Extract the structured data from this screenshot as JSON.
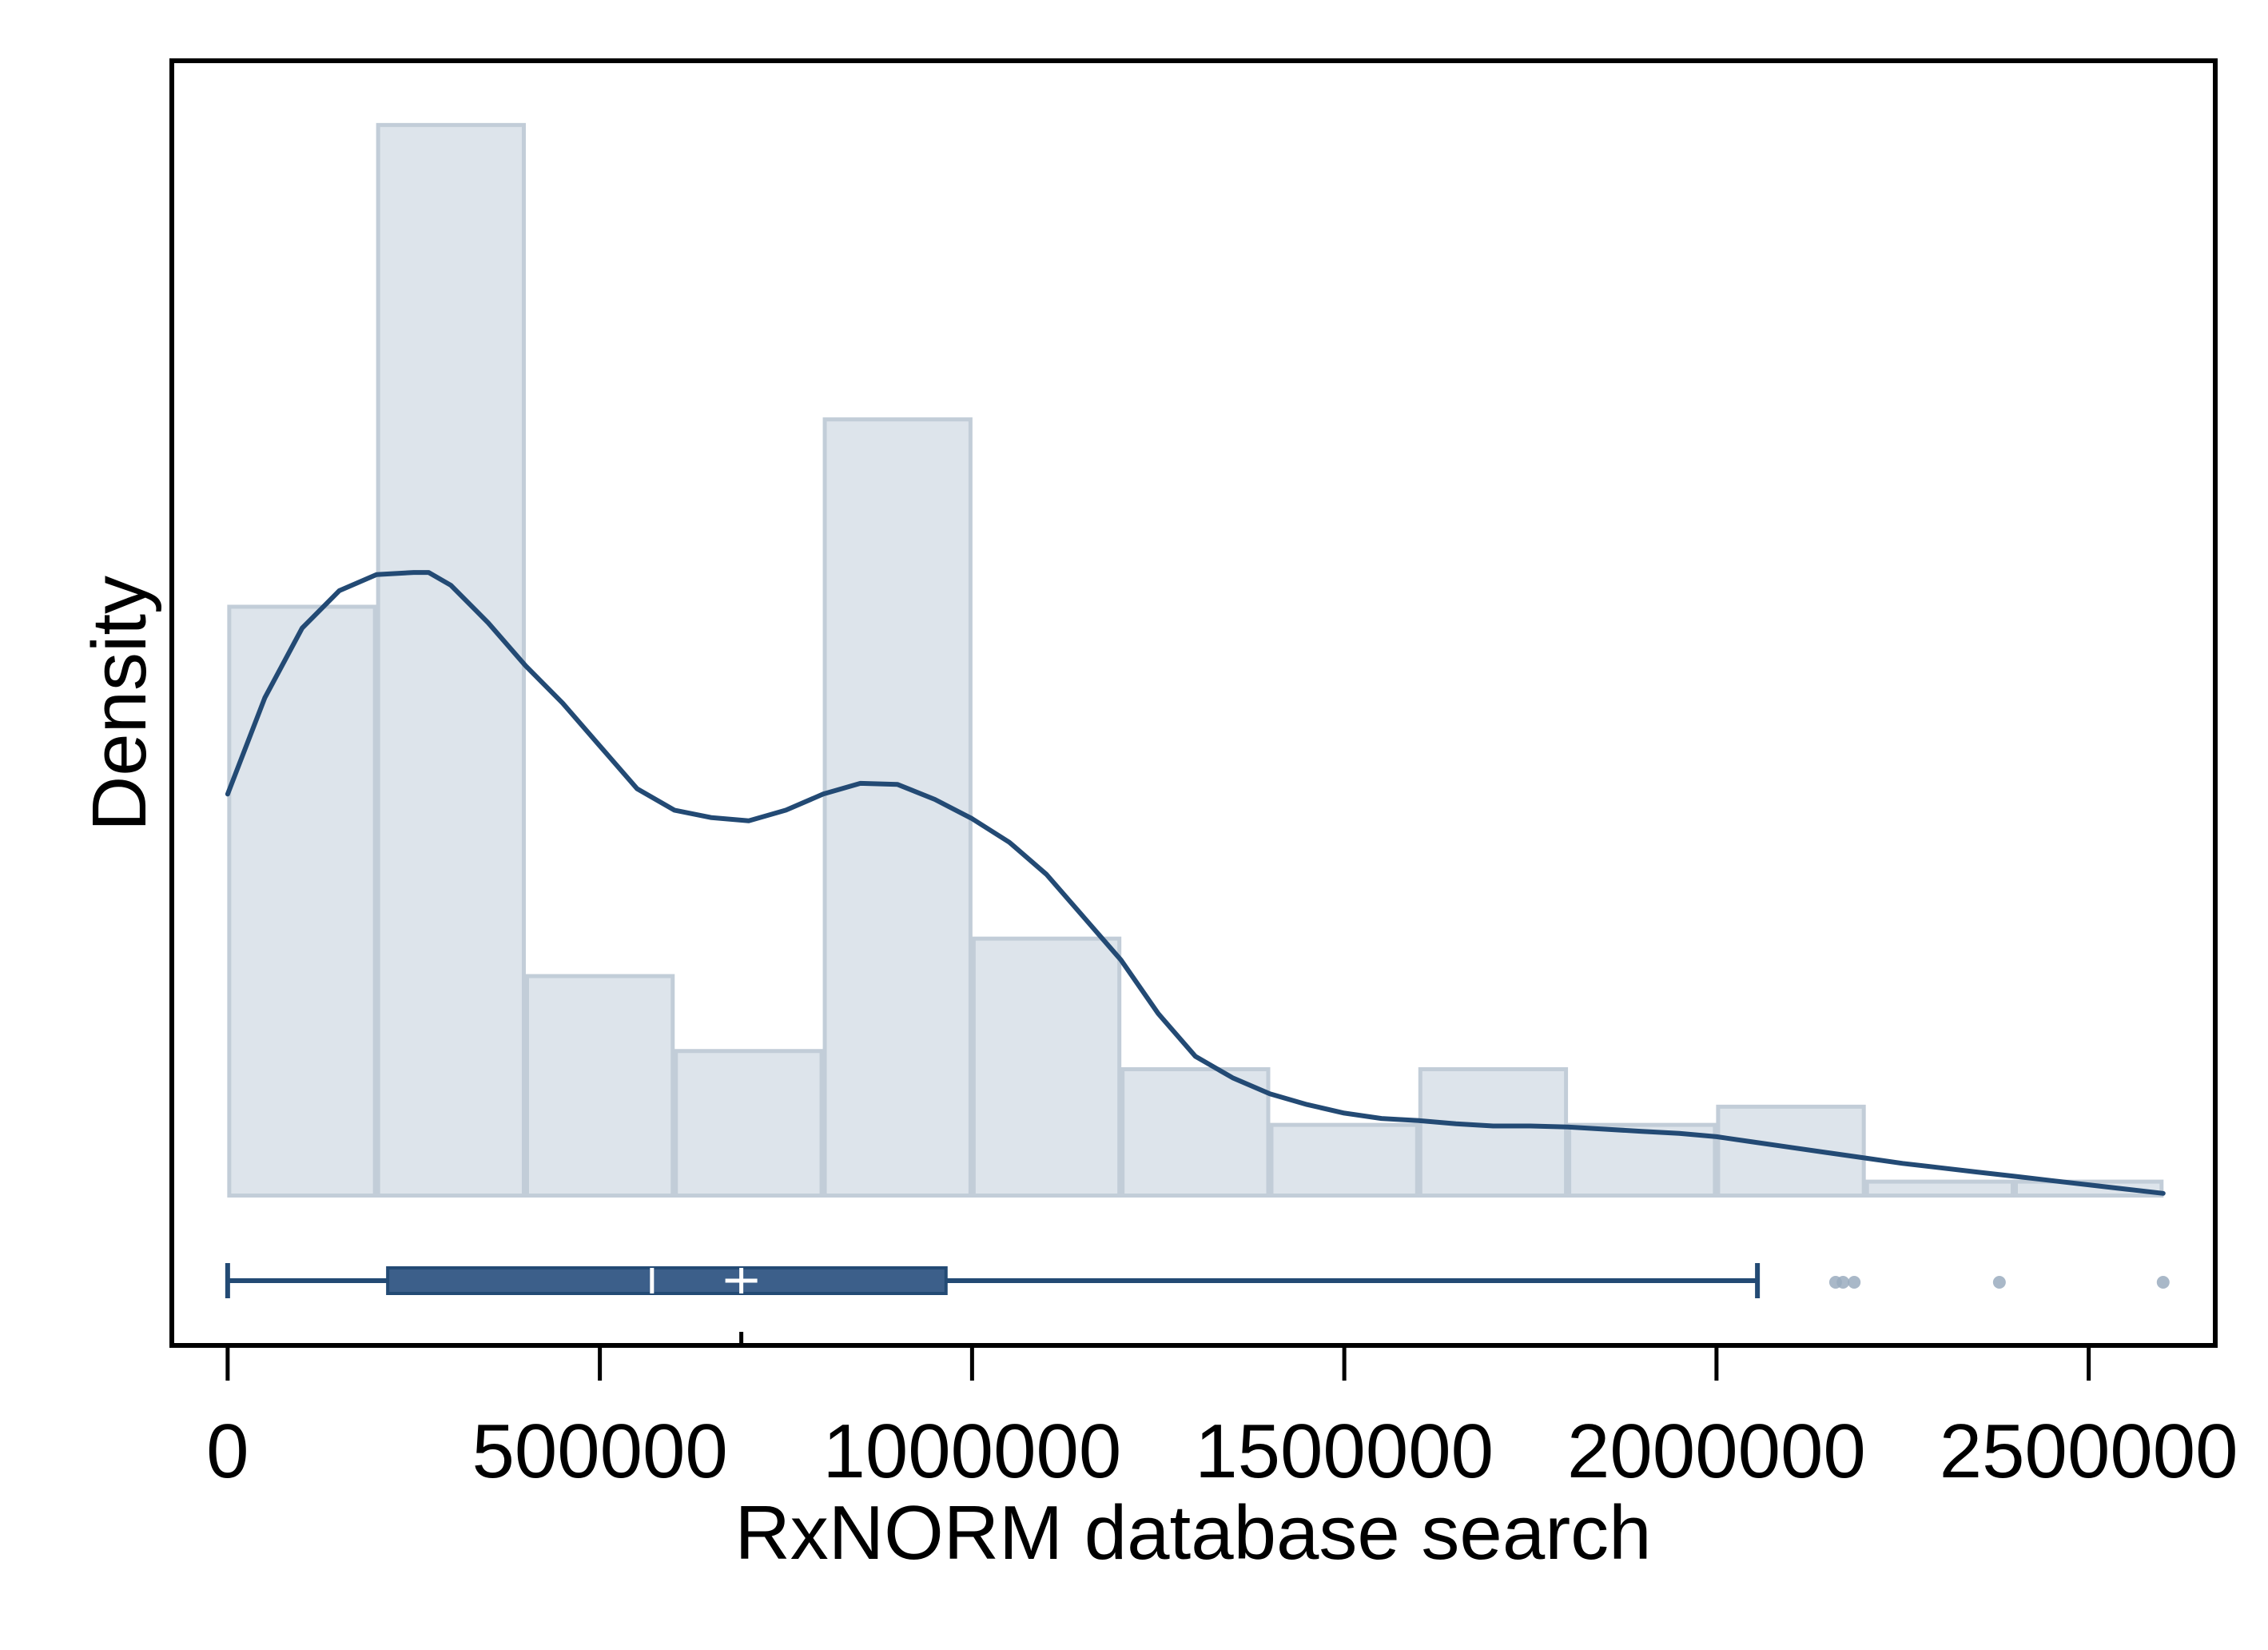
{
  "chart_data": {
    "type": "histogram",
    "xlabel": "RxNORM database search",
    "ylabel": "Density",
    "xlim": [
      -75000,
      2670000
    ],
    "ylim": [
      -0.14,
      1.06
    ],
    "x_ticks": [
      0,
      500000,
      1000000,
      1500000,
      2000000,
      2500000
    ],
    "x_tick_labels": [
      "0",
      "500000",
      "1000000",
      "1500000",
      "2000000",
      "2500000"
    ],
    "bin_width": 200000,
    "histogram": {
      "bin_starts": [
        0,
        200000,
        400000,
        600000,
        800000,
        1000000,
        1200000,
        1400000,
        1600000,
        1800000,
        2000000,
        2200000,
        2400000
      ],
      "relative_heights": [
        0.55,
        1.0,
        0.205,
        0.135,
        0.725,
        0.24,
        0.118,
        0.066,
        0.118,
        0.066,
        0.083,
        0.013,
        0.013
      ]
    },
    "density_curve": {
      "x": [
        0,
        50000,
        100000,
        150000,
        200000,
        250000,
        270000,
        300000,
        350000,
        400000,
        450000,
        500000,
        550000,
        600000,
        650000,
        700000,
        750000,
        800000,
        850000,
        900000,
        950000,
        1000000,
        1050000,
        1100000,
        1150000,
        1200000,
        1250000,
        1300000,
        1350000,
        1400000,
        1450000,
        1500000,
        1550000,
        1600000,
        1650000,
        1700000,
        1750000,
        1800000,
        1850000,
        1900000,
        1950000,
        2000000,
        2050000,
        2100000,
        2150000,
        2200000,
        2250000,
        2300000,
        2350000,
        2400000,
        2450000,
        2500000,
        2550000,
        2600000
      ],
      "y": [
        0.375,
        0.465,
        0.53,
        0.565,
        0.58,
        0.582,
        0.582,
        0.57,
        0.535,
        0.495,
        0.46,
        0.42,
        0.38,
        0.36,
        0.353,
        0.35,
        0.36,
        0.375,
        0.385,
        0.384,
        0.37,
        0.352,
        0.33,
        0.3,
        0.26,
        0.22,
        0.17,
        0.13,
        0.11,
        0.095,
        0.085,
        0.077,
        0.072,
        0.07,
        0.067,
        0.065,
        0.065,
        0.064,
        0.062,
        0.06,
        0.058,
        0.055,
        0.05,
        0.045,
        0.04,
        0.035,
        0.03,
        0.026,
        0.022,
        0.018,
        0.014,
        0.01,
        0.006,
        0.002
      ]
    },
    "box_plot": {
      "whisker_low": 0,
      "q1": 215000,
      "median": 570000,
      "mean": 690000,
      "q3": 965000,
      "whisker_high": 2055000,
      "outliers": [
        2160000,
        2170000,
        2185000,
        2380000,
        2600000
      ]
    },
    "colors": {
      "bar_fill": "#dde4eb",
      "bar_stroke": "#c2cdd8",
      "curve": "#234a74",
      "box_fill": "#3c5f8a",
      "box_line": "#234a74",
      "outlier": "#9aabbe",
      "axis": "#000000"
    }
  }
}
